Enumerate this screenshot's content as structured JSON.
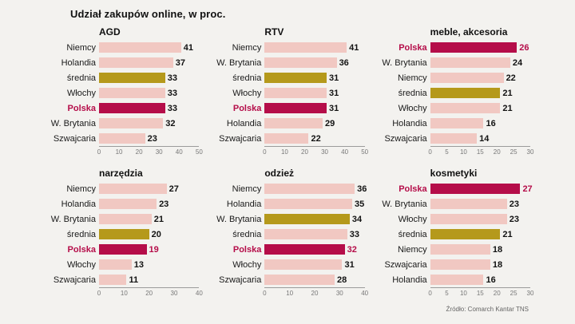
{
  "page": {
    "title": "Udział zakupów online, w proc.",
    "source": "Źródło: Comarch Kantar TNS"
  },
  "colors": {
    "bar_default": "#f1c8c2",
    "bar_poland": "#b50d49",
    "bar_average": "#b5991b",
    "highlight_text": "#b50d49",
    "axis_line": "#9b9b9b",
    "tick_text": "#777777",
    "value_text": "#121212"
  },
  "chart_data": [
    {
      "type": "bar",
      "orientation": "horizontal",
      "title": "AGD",
      "xlim": [
        0,
        50
      ],
      "ticks": [
        0,
        10,
        20,
        30,
        40,
        50
      ],
      "rows": [
        {
          "label": "Niemcy",
          "value": 41,
          "style": "default",
          "value_red": false
        },
        {
          "label": "Holandia",
          "value": 37,
          "style": "default",
          "value_red": false
        },
        {
          "label": "średnia",
          "value": 33,
          "style": "average",
          "value_red": false
        },
        {
          "label": "Włochy",
          "value": 33,
          "style": "default",
          "value_red": false
        },
        {
          "label": "Polska",
          "value": 33,
          "style": "poland",
          "value_red": false
        },
        {
          "label": "W. Brytania",
          "value": 32,
          "style": "default",
          "value_red": false
        },
        {
          "label": "Szwajcaria",
          "value": 23,
          "style": "default",
          "value_red": false
        }
      ]
    },
    {
      "type": "bar",
      "orientation": "horizontal",
      "title": "RTV",
      "xlim": [
        0,
        50
      ],
      "ticks": [
        0,
        10,
        20,
        30,
        40,
        50
      ],
      "rows": [
        {
          "label": "Niemcy",
          "value": 41,
          "style": "default",
          "value_red": false
        },
        {
          "label": "W. Brytania",
          "value": 36,
          "style": "default",
          "value_red": false
        },
        {
          "label": "średnia",
          "value": 31,
          "style": "average",
          "value_red": false
        },
        {
          "label": "Włochy",
          "value": 31,
          "style": "default",
          "value_red": false
        },
        {
          "label": "Polska",
          "value": 31,
          "style": "poland",
          "value_red": false
        },
        {
          "label": "Holandia",
          "value": 29,
          "style": "default",
          "value_red": false
        },
        {
          "label": "Szwajcaria",
          "value": 22,
          "style": "default",
          "value_red": false
        }
      ]
    },
    {
      "type": "bar",
      "orientation": "horizontal",
      "title": "meble, akcesoria",
      "xlim": [
        0,
        30
      ],
      "ticks": [
        0,
        5,
        10,
        15,
        20,
        25,
        30
      ],
      "rows": [
        {
          "label": "Polska",
          "value": 26,
          "style": "poland",
          "value_red": true
        },
        {
          "label": "W. Brytania",
          "value": 24,
          "style": "default",
          "value_red": false
        },
        {
          "label": "Niemcy",
          "value": 22,
          "style": "default",
          "value_red": false
        },
        {
          "label": "średnia",
          "value": 21,
          "style": "average",
          "value_red": false
        },
        {
          "label": "Włochy",
          "value": 21,
          "style": "default",
          "value_red": false
        },
        {
          "label": "Holandia",
          "value": 16,
          "style": "default",
          "value_red": false
        },
        {
          "label": "Szwajcaria",
          "value": 14,
          "style": "default",
          "value_red": false
        }
      ]
    },
    {
      "type": "bar",
      "orientation": "horizontal",
      "title": "narzędzia",
      "xlim": [
        0,
        40
      ],
      "ticks": [
        0,
        10,
        20,
        30,
        40
      ],
      "rows": [
        {
          "label": "Niemcy",
          "value": 27,
          "style": "default",
          "value_red": false
        },
        {
          "label": "Holandia",
          "value": 23,
          "style": "default",
          "value_red": false
        },
        {
          "label": "W. Brytania",
          "value": 21,
          "style": "default",
          "value_red": false
        },
        {
          "label": "średnia",
          "value": 20,
          "style": "average",
          "value_red": false
        },
        {
          "label": "Polska",
          "value": 19,
          "style": "poland",
          "value_red": true
        },
        {
          "label": "Włochy",
          "value": 13,
          "style": "default",
          "value_red": false
        },
        {
          "label": "Szwajcaria",
          "value": 11,
          "style": "default",
          "value_red": false
        }
      ]
    },
    {
      "type": "bar",
      "orientation": "horizontal",
      "title": "odzież",
      "xlim": [
        0,
        40
      ],
      "ticks": [
        0,
        10,
        20,
        30,
        40
      ],
      "rows": [
        {
          "label": "Niemcy",
          "value": 36,
          "style": "default",
          "value_red": false
        },
        {
          "label": "Holandia",
          "value": 35,
          "style": "default",
          "value_red": false
        },
        {
          "label": "W. Brytania",
          "value": 34,
          "style": "average",
          "value_red": false
        },
        {
          "label": "średnia",
          "value": 33,
          "style": "default",
          "value_red": false
        },
        {
          "label": "Polska",
          "value": 32,
          "style": "poland",
          "value_red": true
        },
        {
          "label": "Włochy",
          "value": 31,
          "style": "default",
          "value_red": false
        },
        {
          "label": "Szwajcaria",
          "value": 28,
          "style": "default",
          "value_red": false
        }
      ]
    },
    {
      "type": "bar",
      "orientation": "horizontal",
      "title": "kosmetyki",
      "xlim": [
        0,
        30
      ],
      "ticks": [
        0,
        5,
        10,
        15,
        20,
        25,
        30
      ],
      "rows": [
        {
          "label": "Polska",
          "value": 27,
          "style": "poland",
          "value_red": true
        },
        {
          "label": "W. Brytania",
          "value": 23,
          "style": "default",
          "value_red": false
        },
        {
          "label": "Włochy",
          "value": 23,
          "style": "default",
          "value_red": false
        },
        {
          "label": "średnia",
          "value": 21,
          "style": "average",
          "value_red": false
        },
        {
          "label": "Niemcy",
          "value": 18,
          "style": "default",
          "value_red": false
        },
        {
          "label": "Szwajcaria",
          "value": 18,
          "style": "default",
          "value_red": false
        },
        {
          "label": "Holandia",
          "value": 16,
          "style": "default",
          "value_red": false
        }
      ]
    }
  ]
}
